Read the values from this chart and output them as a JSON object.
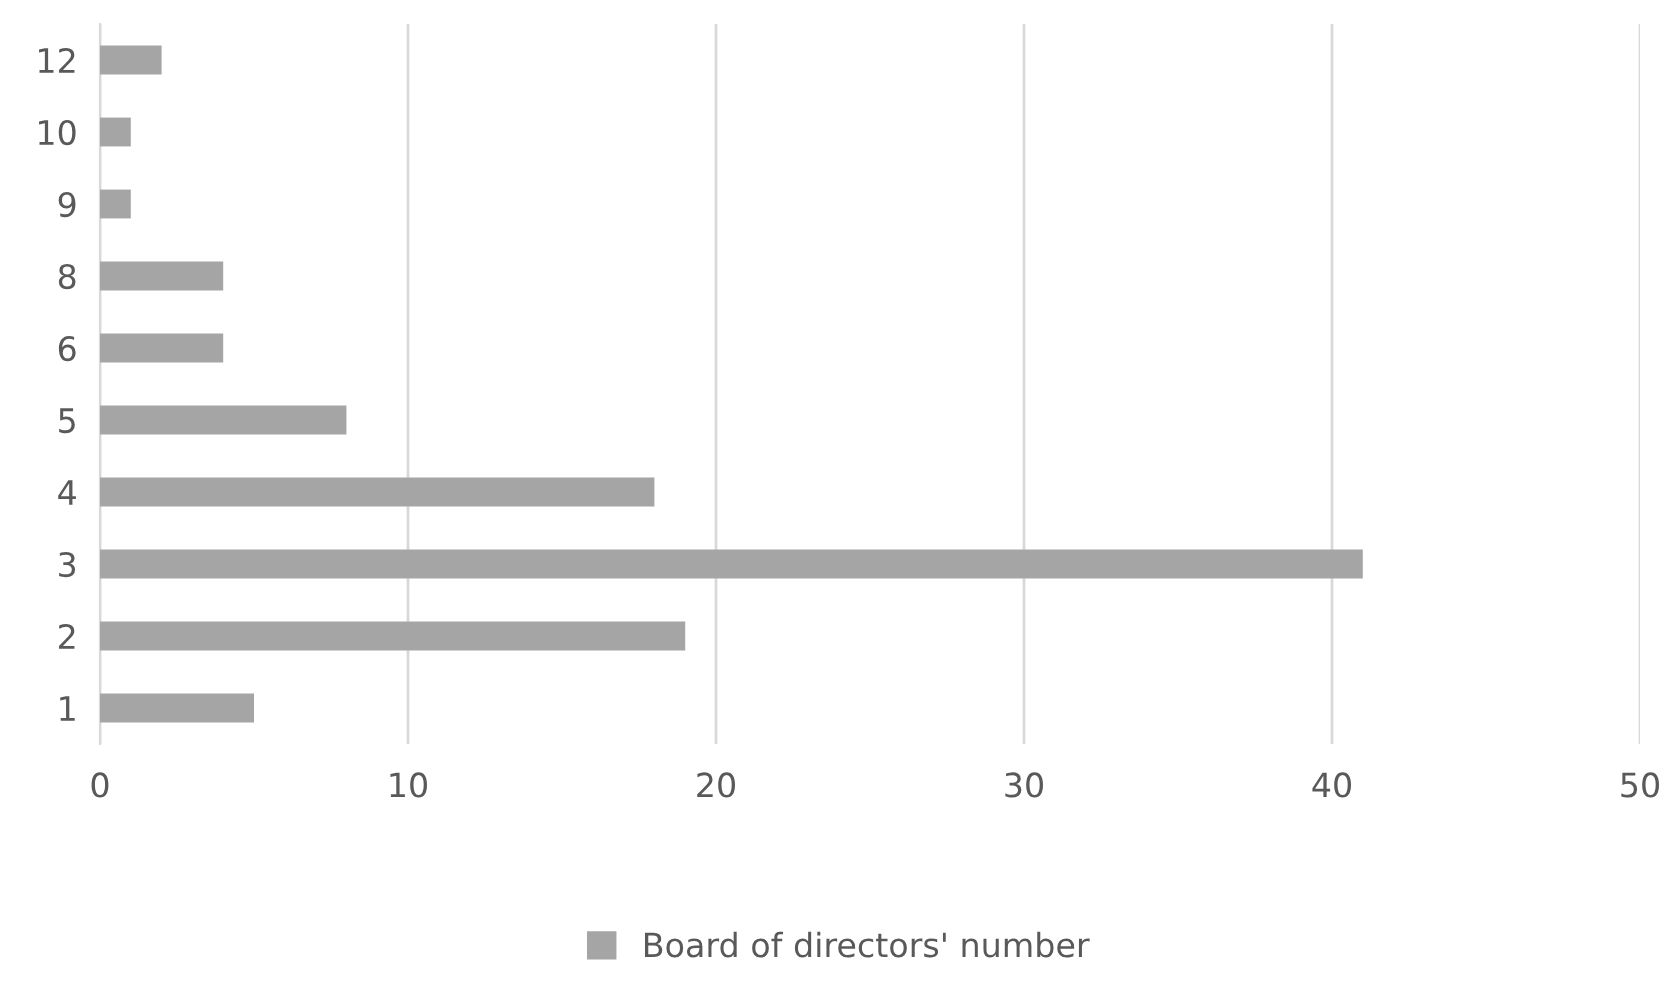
{
  "chart_data": {
    "type": "bar",
    "orientation": "horizontal",
    "categories": [
      "12",
      "10",
      "9",
      "8",
      "6",
      "5",
      "4",
      "3",
      "2",
      "1"
    ],
    "series": [
      {
        "name": "Board of directors' number",
        "color": "#a5a5a5",
        "values": [
          2,
          1,
          1,
          4,
          4,
          8,
          18,
          41,
          19,
          5
        ]
      }
    ],
    "xlim": [
      0,
      50
    ],
    "xticks": [
      0,
      10,
      20,
      30,
      40,
      50
    ],
    "grid": "x",
    "legend": "bottom"
  }
}
